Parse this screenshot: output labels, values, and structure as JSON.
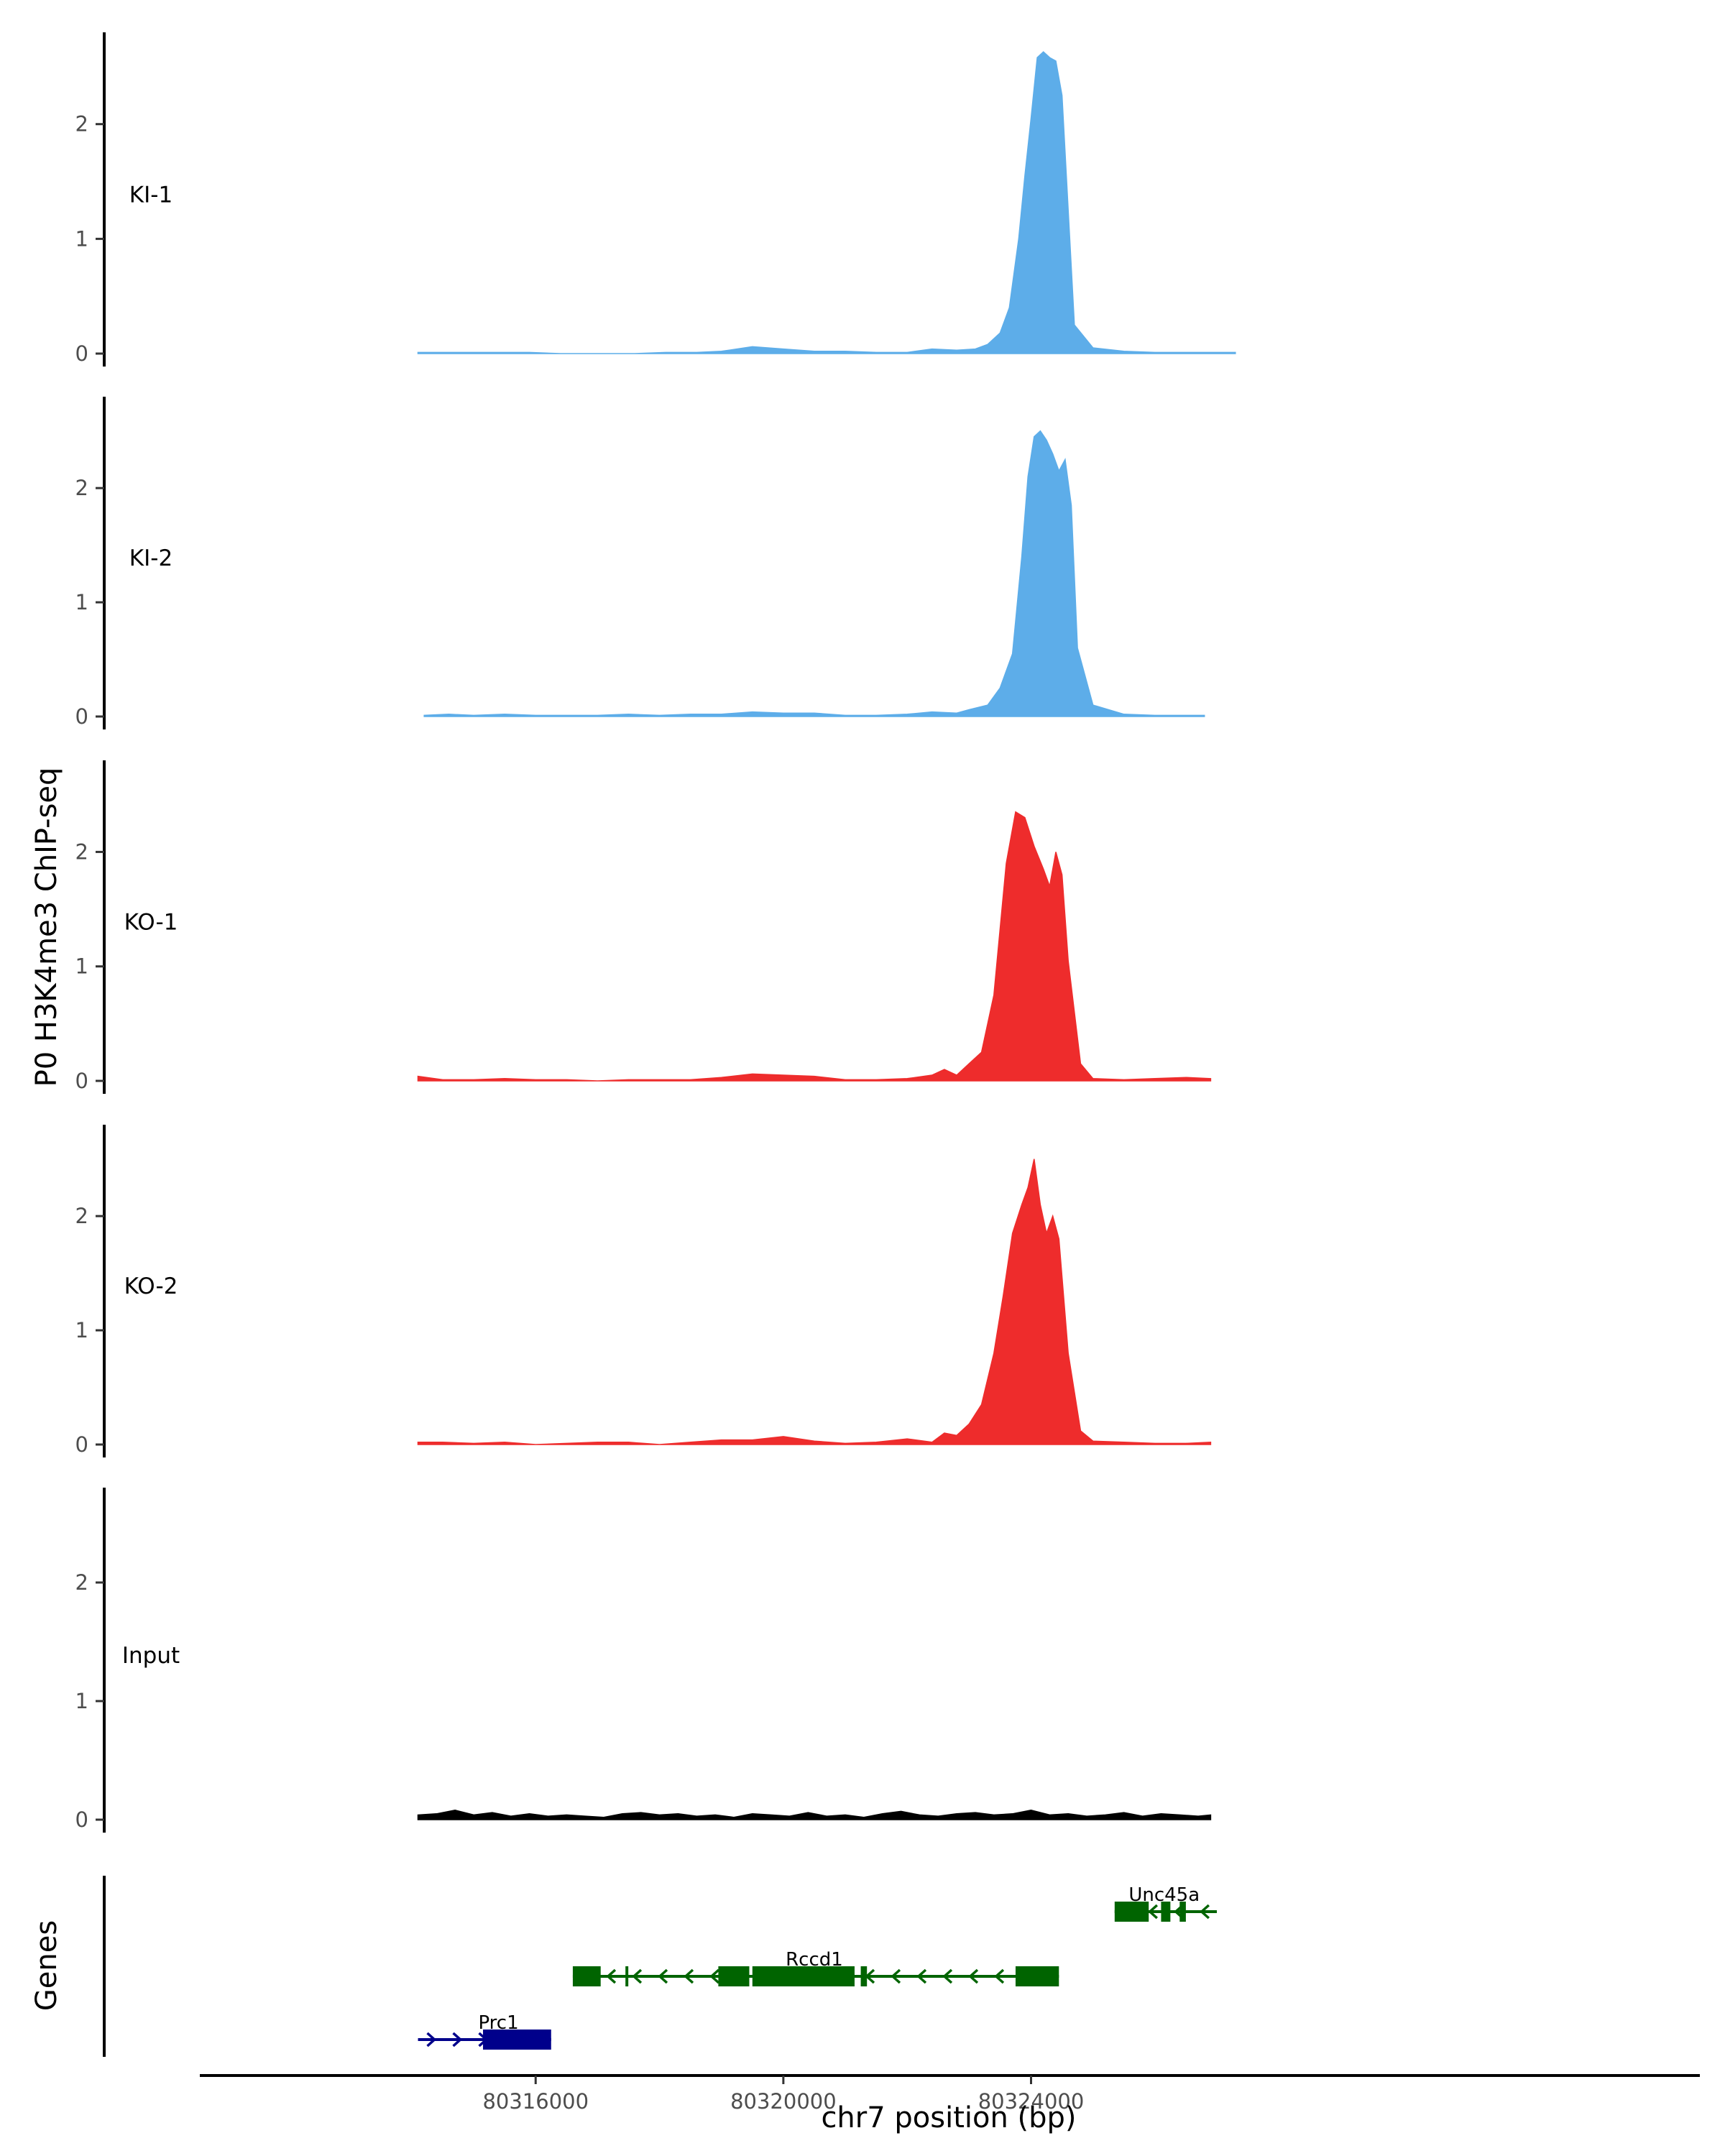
{
  "chart_data": {
    "type": "area",
    "ylabel": "P0 H3K4me3 ChIP-seq",
    "xlabel": "chr7 position (bp)",
    "xlim": [
      80310600,
      80334800
    ],
    "ylim": [
      0,
      2.8
    ],
    "y_ticks": [
      0,
      1,
      2
    ],
    "y_tick_labels": [
      "0",
      "1",
      "2"
    ],
    "x_ticks": [
      80316000,
      80320000,
      80324000
    ],
    "x_tick_labels": [
      "80316000",
      "80320000",
      "80324000"
    ],
    "colors": {
      "KI": "#5dade9",
      "KO": "#ee2c2c",
      "Input": "#000000"
    },
    "tracks": [
      {
        "name": "KI-1",
        "color": "#5dade9",
        "x": [
          80314100,
          80314500,
          80314900,
          80315400,
          80315900,
          80316400,
          80317000,
          80317600,
          80318100,
          80318600,
          80319000,
          80319500,
          80320000,
          80320500,
          80321000,
          80321500,
          80322000,
          80322400,
          80322800,
          80323100,
          80323300,
          80323500,
          80323650,
          80323800,
          80323900,
          80324000,
          80324100,
          80324200,
          80324300,
          80324400,
          80324500,
          80324600,
          80324700,
          80325000,
          80325500,
          80326000,
          80326500,
          80327000,
          80327300
        ],
        "values": [
          0.01,
          0.01,
          0.01,
          0.01,
          0.01,
          0.0,
          0.0,
          0.0,
          0.01,
          0.01,
          0.02,
          0.06,
          0.04,
          0.02,
          0.02,
          0.01,
          0.01,
          0.04,
          0.03,
          0.04,
          0.08,
          0.18,
          0.4,
          1.0,
          1.55,
          2.05,
          2.58,
          2.63,
          2.58,
          2.55,
          2.25,
          1.25,
          0.25,
          0.05,
          0.02,
          0.01,
          0.01,
          0.01,
          0.01
        ]
      },
      {
        "name": "KI-2",
        "color": "#5dade9",
        "x": [
          80314200,
          80314600,
          80315000,
          80315500,
          80316000,
          80316500,
          80317000,
          80317500,
          80318000,
          80318500,
          80319000,
          80319500,
          80320000,
          80320500,
          80321000,
          80321500,
          80322000,
          80322400,
          80322800,
          80323000,
          80323300,
          80323500,
          80323700,
          80323850,
          80323950,
          80324050,
          80324150,
          80324250,
          80324350,
          80324450,
          80324550,
          80324650,
          80324750,
          80325000,
          80325500,
          80326000,
          80326500,
          80326800
        ],
        "values": [
          0.01,
          0.02,
          0.01,
          0.02,
          0.01,
          0.01,
          0.01,
          0.02,
          0.01,
          0.02,
          0.02,
          0.04,
          0.03,
          0.03,
          0.01,
          0.01,
          0.02,
          0.04,
          0.03,
          0.06,
          0.1,
          0.25,
          0.55,
          1.4,
          2.1,
          2.45,
          2.5,
          2.42,
          2.3,
          2.15,
          2.25,
          1.85,
          0.6,
          0.1,
          0.02,
          0.01,
          0.01,
          0.01
        ]
      },
      {
        "name": "KO-1",
        "color": "#ee2c2c",
        "x": [
          80314100,
          80314500,
          80315000,
          80315500,
          80316000,
          80316500,
          80317000,
          80317500,
          80318000,
          80318500,
          80319000,
          80319500,
          80320000,
          80320500,
          80321000,
          80321500,
          80322000,
          80322400,
          80322600,
          80322800,
          80323000,
          80323200,
          80323400,
          80323600,
          80323750,
          80323900,
          80324050,
          80324200,
          80324300,
          80324400,
          80324500,
          80324600,
          80324800,
          80325000,
          80325500,
          80326000,
          80326500,
          80326900
        ],
        "values": [
          0.04,
          0.01,
          0.01,
          0.02,
          0.01,
          0.01,
          0.0,
          0.01,
          0.01,
          0.01,
          0.03,
          0.06,
          0.05,
          0.04,
          0.01,
          0.01,
          0.02,
          0.05,
          0.1,
          0.05,
          0.15,
          0.25,
          0.75,
          1.9,
          2.35,
          2.3,
          2.05,
          1.85,
          1.7,
          2.0,
          1.8,
          1.05,
          0.15,
          0.02,
          0.01,
          0.02,
          0.03,
          0.02
        ]
      },
      {
        "name": "KO-2",
        "color": "#ee2c2c",
        "x": [
          80314100,
          80314500,
          80315000,
          80315500,
          80316000,
          80316500,
          80317000,
          80317500,
          80318000,
          80318500,
          80319000,
          80319500,
          80320000,
          80320500,
          80321000,
          80321500,
          80322000,
          80322400,
          80322600,
          80322800,
          80323000,
          80323200,
          80323400,
          80323550,
          80323700,
          80323850,
          80323950,
          80324050,
          80324150,
          80324250,
          80324350,
          80324450,
          80324600,
          80324800,
          80325000,
          80325500,
          80326000,
          80326500,
          80326900
        ],
        "values": [
          0.02,
          0.02,
          0.01,
          0.02,
          0.0,
          0.01,
          0.02,
          0.02,
          0.0,
          0.02,
          0.04,
          0.04,
          0.07,
          0.03,
          0.01,
          0.02,
          0.05,
          0.02,
          0.1,
          0.08,
          0.18,
          0.35,
          0.8,
          1.3,
          1.85,
          2.1,
          2.25,
          2.5,
          2.1,
          1.85,
          2.0,
          1.8,
          0.8,
          0.12,
          0.03,
          0.02,
          0.01,
          0.01,
          0.02
        ]
      },
      {
        "name": "Input",
        "color": "#000000",
        "x": [
          80314100,
          80314400,
          80314700,
          80315000,
          80315300,
          80315600,
          80315900,
          80316200,
          80316500,
          80316800,
          80317100,
          80317400,
          80317700,
          80318000,
          80318300,
          80318600,
          80318900,
          80319200,
          80319500,
          80319800,
          80320100,
          80320400,
          80320700,
          80321000,
          80321300,
          80321600,
          80321900,
          80322200,
          80322500,
          80322800,
          80323100,
          80323400,
          80323700,
          80324000,
          80324300,
          80324600,
          80324900,
          80325200,
          80325500,
          80325800,
          80326100,
          80326400,
          80326700,
          80326900
        ],
        "values": [
          0.04,
          0.05,
          0.08,
          0.04,
          0.06,
          0.03,
          0.05,
          0.03,
          0.04,
          0.03,
          0.02,
          0.05,
          0.06,
          0.04,
          0.05,
          0.03,
          0.04,
          0.02,
          0.05,
          0.04,
          0.03,
          0.06,
          0.03,
          0.04,
          0.02,
          0.05,
          0.07,
          0.04,
          0.03,
          0.05,
          0.06,
          0.04,
          0.05,
          0.08,
          0.04,
          0.05,
          0.03,
          0.04,
          0.06,
          0.03,
          0.05,
          0.04,
          0.03,
          0.04
        ]
      }
    ],
    "genes_track": {
      "label": "Genes",
      "genes": [
        {
          "name": "Prc1",
          "color": "#00008b",
          "strand": "+",
          "start": 80314100,
          "end": 80316250,
          "row": 2,
          "exons": [
            [
              80315150,
              80316250
            ]
          ]
        },
        {
          "name": "Rccd1",
          "color": "#006400",
          "strand": "-",
          "start": 80316600,
          "end": 80324450,
          "row": 1,
          "exons": [
            [
              80316600,
              80317050
            ],
            [
              80317450,
              80317480
            ],
            [
              80318950,
              80319450
            ],
            [
              80319500,
              80321150
            ],
            [
              80321250,
              80321350
            ],
            [
              80323750,
              80324450
            ]
          ]
        },
        {
          "name": "Unc45a",
          "color": "#006400",
          "strand": "-",
          "start": 80325350,
          "end": 80327000,
          "row": 0,
          "exons": [
            [
              80325350,
              80325900
            ],
            [
              80326100,
              80326250
            ],
            [
              80326400,
              80326500
            ]
          ]
        }
      ]
    }
  }
}
